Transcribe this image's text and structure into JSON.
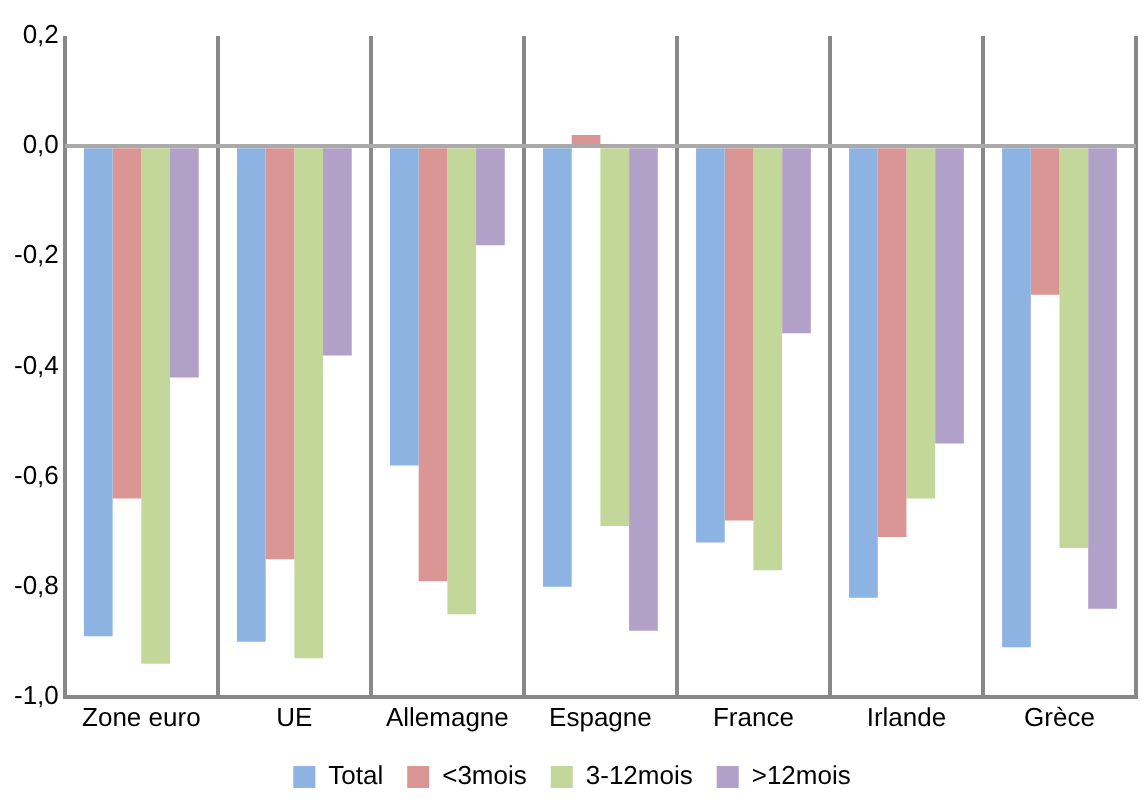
{
  "chart_data": {
    "type": "bar",
    "categories": [
      "Zone euro",
      "UE",
      "Allemagne",
      "Espagne",
      "France",
      "Irlande",
      "Grèce"
    ],
    "series": [
      {
        "name": "Total",
        "color": "#8db3e2",
        "values": [
          -0.89,
          -0.9,
          -0.58,
          -0.8,
          -0.72,
          -0.82,
          -0.91
        ]
      },
      {
        "name": "<3mois",
        "color": "#da9694",
        "values": [
          -0.64,
          -0.75,
          -0.79,
          0.02,
          -0.68,
          -0.71,
          -0.27
        ]
      },
      {
        "name": "3-12mois",
        "color": "#c4d79b",
        "values": [
          -0.94,
          -0.93,
          -0.85,
          -0.69,
          -0.77,
          -0.64,
          -0.73
        ]
      },
      {
        "name": ">12mois",
        "color": "#b1a0c7",
        "values": [
          -0.42,
          -0.38,
          -0.18,
          -0.88,
          -0.34,
          -0.54,
          -0.84
        ]
      }
    ],
    "ylim": [
      -1.0,
      0.2
    ],
    "yticks": [
      {
        "value": 0.2,
        "label": "0,2"
      },
      {
        "value": 0,
        "label": "0,0"
      },
      {
        "value": -0.2,
        "label": "-0,2"
      },
      {
        "value": -0.4,
        "label": "-0,4"
      },
      {
        "value": -0.6,
        "label": "-0,6"
      },
      {
        "value": -0.8,
        "label": "-0,8"
      },
      {
        "value": -1.0,
        "label": "-1,0"
      }
    ],
    "grid": "x",
    "legend": "bottom"
  }
}
